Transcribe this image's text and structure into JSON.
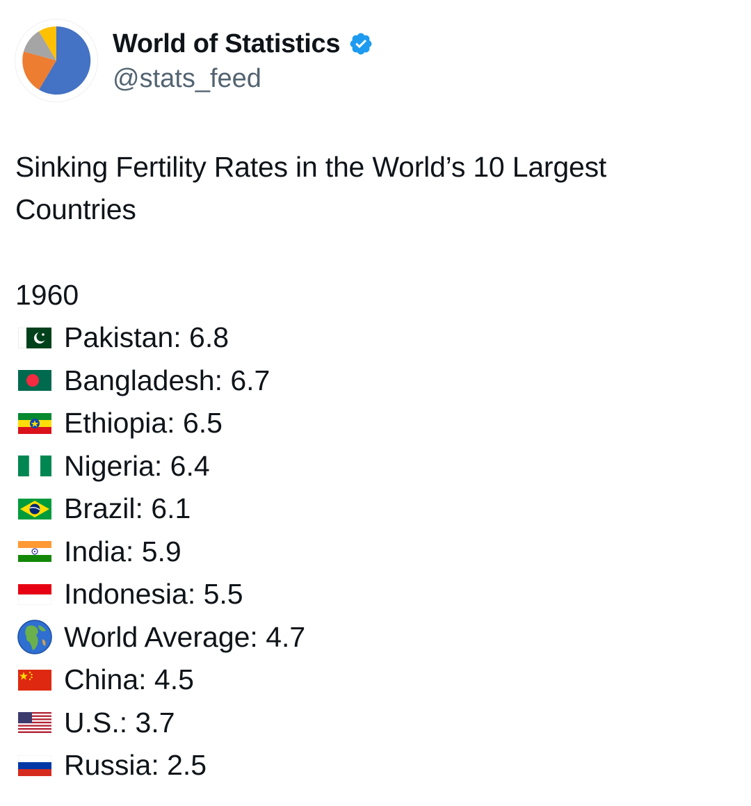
{
  "author": {
    "display_name": "World of Statistics",
    "handle": "@stats_feed",
    "verified": true,
    "verified_icon": "verified-badge-icon",
    "avatar": "pie-chart-avatar",
    "colors": {
      "verified": "#1d9bf0",
      "handle": "#536471",
      "avatar_blue": "#4472c4",
      "avatar_orange": "#ed7d31",
      "avatar_gray": "#a5a5a5",
      "avatar_yellow": "#ffc000"
    }
  },
  "tweet": {
    "title": "Sinking Fertility Rates in the World’s 10 Largest Countries",
    "year": "1960",
    "items": [
      {
        "icon": "pakistan-flag-icon",
        "text": "Pakistan: 6.8"
      },
      {
        "icon": "bangladesh-flag-icon",
        "text": "Bangladesh: 6.7"
      },
      {
        "icon": "ethiopia-flag-icon",
        "text": "Ethiopia: 6.5"
      },
      {
        "icon": "nigeria-flag-icon",
        "text": "Nigeria: 6.4"
      },
      {
        "icon": "brazil-flag-icon",
        "text": "Brazil: 6.1"
      },
      {
        "icon": "india-flag-icon",
        "text": "India: 5.9"
      },
      {
        "icon": "indonesia-flag-icon",
        "text": "Indonesia: 5.5"
      },
      {
        "icon": "globe-icon",
        "text": "World Average: 4.7"
      },
      {
        "icon": "china-flag-icon",
        "text": "China: 4.5"
      },
      {
        "icon": "us-flag-icon",
        "text": "U.S.: 3.7"
      },
      {
        "icon": "russia-flag-icon",
        "text": "Russia: 2.5"
      }
    ]
  }
}
